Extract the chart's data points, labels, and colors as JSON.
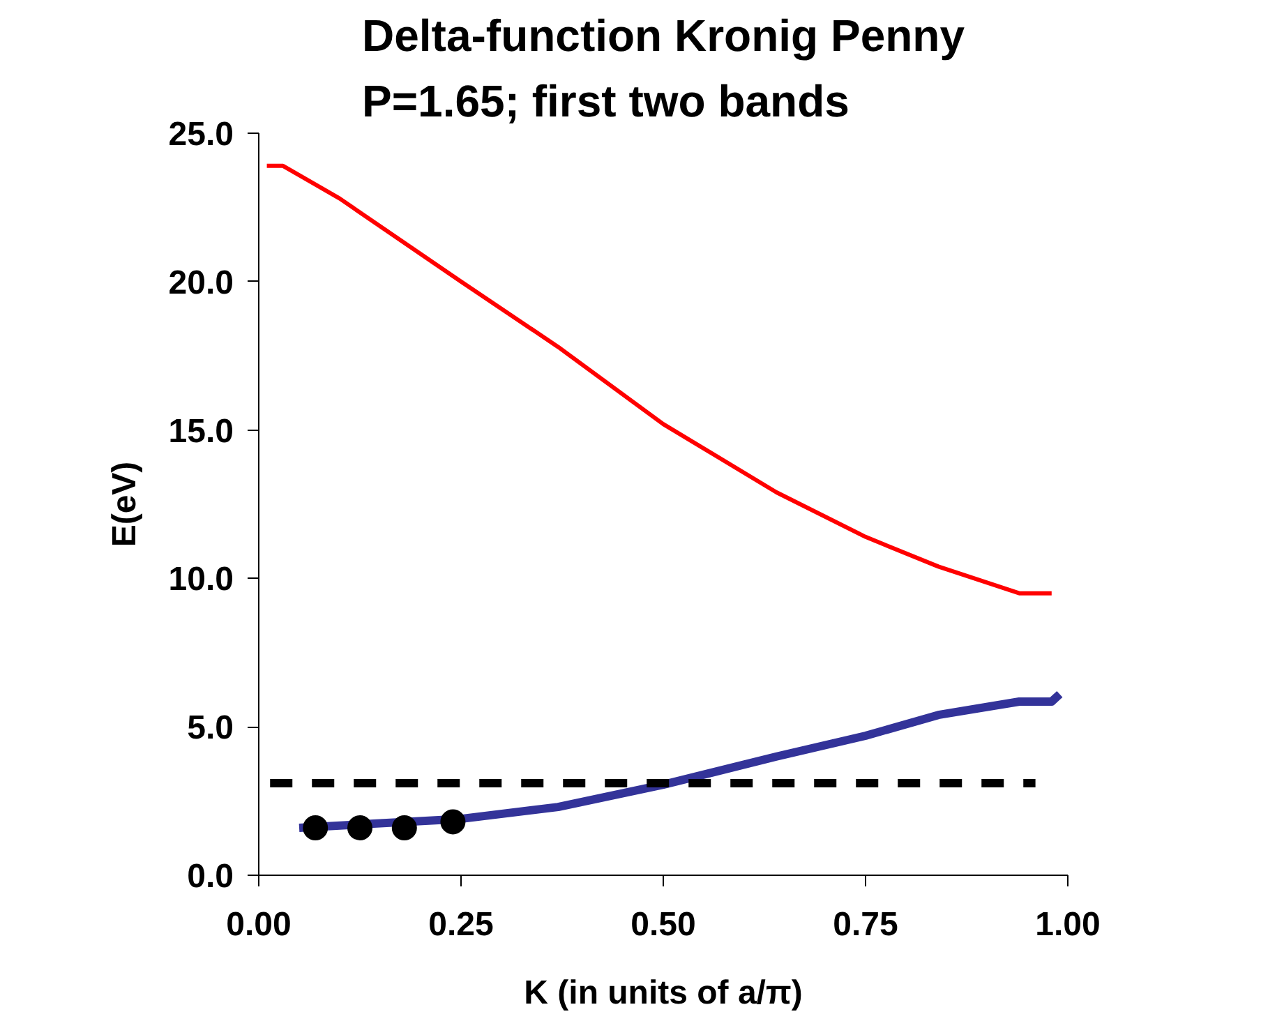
{
  "chart_data": {
    "type": "line",
    "title": "Delta-function Kronig Penny\nP=1.65; first two bands",
    "xlabel": "K (in units of a/π)",
    "ylabel": "E(eV)",
    "xlim": [
      0,
      1
    ],
    "ylim": [
      0,
      25
    ],
    "xticks": [
      {
        "value": 0,
        "label": "0.00"
      },
      {
        "value": 0.25,
        "label": "0.25"
      },
      {
        "value": 0.5,
        "label": "0.50"
      },
      {
        "value": 0.75,
        "label": "0.75"
      },
      {
        "value": 1,
        "label": "1.00"
      }
    ],
    "yticks": [
      {
        "value": 0,
        "label": "0.0"
      },
      {
        "value": 5,
        "label": "5.0"
      },
      {
        "value": 10,
        "label": "10.0"
      },
      {
        "value": 15,
        "label": "15.0"
      },
      {
        "value": 20,
        "label": "20.0"
      },
      {
        "value": 25,
        "label": "25.0"
      }
    ],
    "grid": false,
    "series": [
      {
        "color": "#ff0000",
        "x": [
          0.01,
          0.03,
          0.1,
          0.25,
          0.37,
          0.5,
          0.64,
          0.75,
          0.84,
          0.94,
          0.98
        ],
        "values": [
          23.9,
          23.9,
          22.8,
          20.0,
          17.8,
          15.2,
          12.9,
          11.4,
          10.4,
          9.5,
          9.5
        ]
      },
      {
        "color": "#333399",
        "x": [
          0.05,
          0.25,
          0.37,
          0.5,
          0.64,
          0.75,
          0.84,
          0.94,
          0.98,
          0.99
        ],
        "values": [
          1.6,
          1.9,
          2.3,
          3.05,
          4.0,
          4.7,
          5.4,
          5.85,
          5.85,
          6.1
        ]
      },
      {
        "color": "#000000",
        "line_style": "dashed",
        "x": [
          0.014,
          0.96
        ],
        "values": [
          3.1,
          3.1
        ]
      },
      {
        "type": "scatter",
        "color": "#000000",
        "x": [
          0.07,
          0.125,
          0.18,
          0.24
        ],
        "values": [
          1.6,
          1.6,
          1.6,
          1.8
        ]
      }
    ]
  }
}
